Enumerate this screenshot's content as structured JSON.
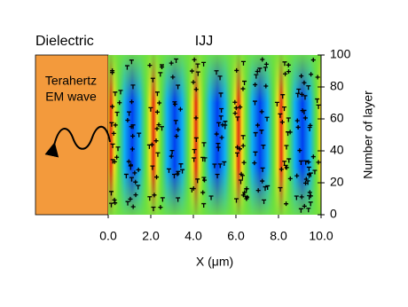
{
  "chart_data": {
    "type": "heatmap",
    "left_title": "Dielectric",
    "right_title": "IJJ",
    "wave_label": [
      "Terahertz",
      "EM wave"
    ],
    "xlabel": "X (μm)",
    "ylabel": "Number of layer",
    "xlim": [
      0,
      10
    ],
    "xticks": [
      {
        "value": 0,
        "label": "0.0"
      },
      {
        "value": 2,
        "label": "2.0"
      },
      {
        "value": 4,
        "label": "4.0"
      },
      {
        "value": 6,
        "label": "6.0"
      },
      {
        "value": 8,
        "label": "8.0"
      },
      {
        "value": 10,
        "label": "10.0"
      }
    ],
    "ylim": [
      0,
      100
    ],
    "yticks": [
      0,
      20,
      40,
      60,
      80,
      100
    ]
  }
}
